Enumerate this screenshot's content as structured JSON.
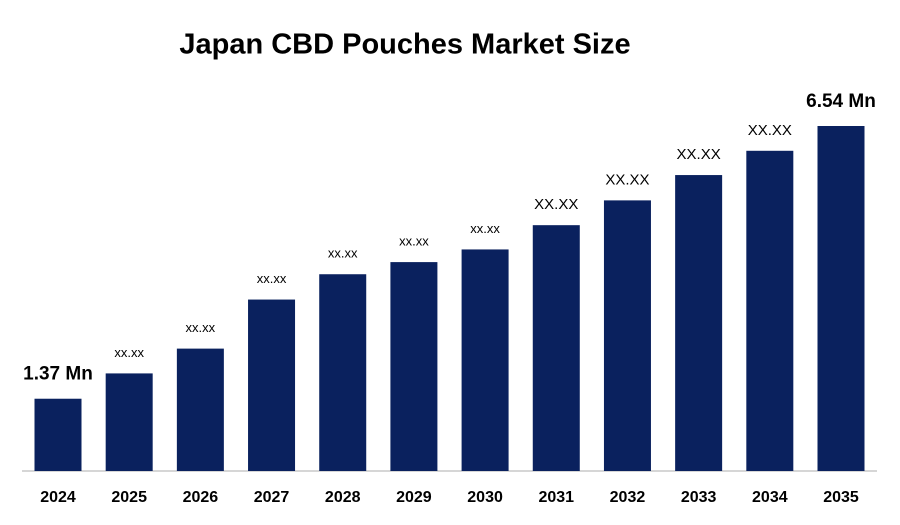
{
  "chart_data": {
    "type": "bar",
    "title": "Japan CBD Pouches Market Size",
    "categories": [
      "2024",
      "2025",
      "2026",
      "2027",
      "2028",
      "2029",
      "2030",
      "2031",
      "2032",
      "2033",
      "2034",
      "2035"
    ],
    "values": [
      1.37,
      1.85,
      2.32,
      3.25,
      3.73,
      3.96,
      4.2,
      4.66,
      5.13,
      5.61,
      6.07,
      6.54
    ],
    "value_labels": [
      "1.37 Mn",
      "xx.xx",
      "xx.xx",
      "xx.xx",
      "xx.xx",
      "xx.xx",
      "xx.xx",
      "XX.XX",
      "XX.XX",
      "XX.XX",
      "XX.XX",
      "6.54 Mn"
    ],
    "color": "#0a215e"
  }
}
